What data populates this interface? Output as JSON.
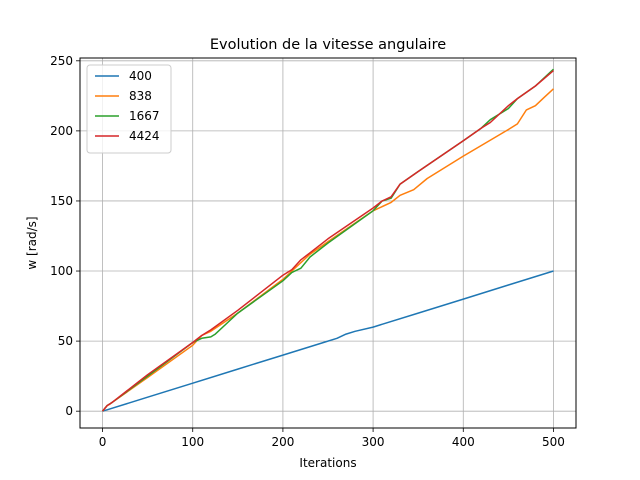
{
  "chart_data": {
    "type": "line",
    "title": "Evolution de la vitesse angulaire",
    "xlabel": "Iterations",
    "ylabel": "w [rad/s]",
    "xlim": [
      -25,
      525
    ],
    "ylim": [
      -12,
      252
    ],
    "xticks": [
      0,
      100,
      200,
      300,
      400,
      500
    ],
    "yticks": [
      0,
      50,
      100,
      150,
      200,
      250
    ],
    "grid": true,
    "legend_position": "top-left",
    "series": [
      {
        "name": "400",
        "color": "#1f77b4",
        "points": [
          [
            0,
            0
          ],
          [
            5,
            1
          ],
          [
            50,
            10
          ],
          [
            100,
            20
          ],
          [
            150,
            30
          ],
          [
            200,
            40
          ],
          [
            245,
            49
          ],
          [
            260,
            52
          ],
          [
            270,
            55
          ],
          [
            280,
            57
          ],
          [
            300,
            60
          ],
          [
            350,
            70
          ],
          [
            400,
            80
          ],
          [
            450,
            90
          ],
          [
            500,
            100
          ]
        ]
      },
      {
        "name": "838",
        "color": "#ff7f0e",
        "points": [
          [
            0,
            0
          ],
          [
            5,
            4
          ],
          [
            8,
            5
          ],
          [
            10,
            6
          ],
          [
            50,
            24
          ],
          [
            100,
            47
          ],
          [
            110,
            54
          ],
          [
            120,
            57
          ],
          [
            150,
            70
          ],
          [
            200,
            94
          ],
          [
            210,
            100
          ],
          [
            230,
            112
          ],
          [
            250,
            121
          ],
          [
            300,
            143
          ],
          [
            320,
            149
          ],
          [
            330,
            154
          ],
          [
            345,
            158
          ],
          [
            360,
            166
          ],
          [
            400,
            182
          ],
          [
            450,
            201
          ],
          [
            460,
            205
          ],
          [
            470,
            215
          ],
          [
            480,
            218
          ],
          [
            490,
            224
          ],
          [
            500,
            230
          ]
        ]
      },
      {
        "name": "1667",
        "color": "#2ca02c",
        "points": [
          [
            0,
            0
          ],
          [
            5,
            4
          ],
          [
            10,
            6
          ],
          [
            50,
            25
          ],
          [
            100,
            49
          ],
          [
            110,
            52
          ],
          [
            120,
            53
          ],
          [
            125,
            55
          ],
          [
            140,
            64
          ],
          [
            150,
            70
          ],
          [
            200,
            93
          ],
          [
            210,
            99
          ],
          [
            220,
            102
          ],
          [
            230,
            110
          ],
          [
            250,
            120
          ],
          [
            300,
            143
          ],
          [
            310,
            150
          ],
          [
            320,
            152
          ],
          [
            330,
            162
          ],
          [
            350,
            171
          ],
          [
            400,
            193
          ],
          [
            420,
            202
          ],
          [
            430,
            208
          ],
          [
            450,
            216
          ],
          [
            460,
            223
          ],
          [
            480,
            232
          ],
          [
            500,
            244
          ]
        ]
      },
      {
        "name": "4424",
        "color": "#d62728",
        "points": [
          [
            0,
            0
          ],
          [
            5,
            4
          ],
          [
            10,
            6
          ],
          [
            50,
            26
          ],
          [
            100,
            49
          ],
          [
            110,
            54
          ],
          [
            120,
            58
          ],
          [
            150,
            72
          ],
          [
            200,
            97
          ],
          [
            210,
            101
          ],
          [
            220,
            108
          ],
          [
            230,
            113
          ],
          [
            250,
            123
          ],
          [
            300,
            145
          ],
          [
            310,
            150
          ],
          [
            320,
            153
          ],
          [
            330,
            162
          ],
          [
            350,
            171
          ],
          [
            400,
            193
          ],
          [
            420,
            202
          ],
          [
            430,
            206
          ],
          [
            450,
            218
          ],
          [
            460,
            223
          ],
          [
            480,
            232
          ],
          [
            500,
            243
          ]
        ]
      }
    ]
  }
}
